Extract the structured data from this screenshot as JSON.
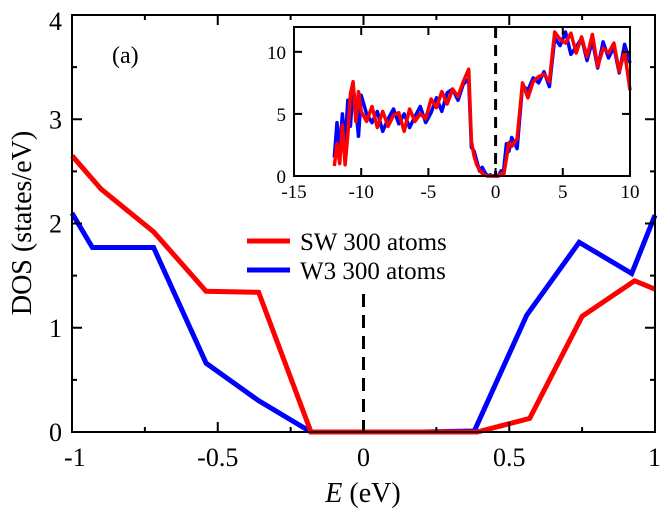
{
  "chart_data": [
    {
      "type": "line",
      "panel_label": "(a)",
      "xlabel_italic": "E",
      "xlabel_rest": " (eV)",
      "ylabel": "DOS (states/eV)",
      "xlim": [
        -1,
        1
      ],
      "ylim": [
        0,
        4
      ],
      "xticks": [
        -1,
        -0.5,
        0,
        0.5,
        1
      ],
      "xtick_labels": [
        "-1",
        "-0.5",
        "0",
        "0.5",
        "1"
      ],
      "yticks": [
        0,
        1,
        2,
        3,
        4
      ],
      "ytick_labels": [
        "0",
        "1",
        "2",
        "3",
        "4"
      ],
      "fermi_level_marker": 0,
      "legend_position": "center-right",
      "series": [
        {
          "name": "SW 300 atoms",
          "color": "#ff0000",
          "x": [
            -1.0,
            -0.9,
            -0.72,
            -0.54,
            -0.36,
            -0.18,
            0.0,
            0.2,
            0.39,
            0.57,
            0.75,
            0.93,
            1.0
          ],
          "y": [
            2.65,
            2.33,
            1.92,
            1.35,
            1.34,
            0.0,
            0.0,
            0.0,
            0.0,
            0.13,
            1.11,
            1.45,
            1.37
          ]
        },
        {
          "name": "W3 300 atoms",
          "color": "#0000ff",
          "x": [
            -1.0,
            -0.93,
            -0.72,
            -0.54,
            -0.36,
            -0.18,
            0.0,
            0.2,
            0.38,
            0.56,
            0.74,
            0.92,
            1.0
          ],
          "y": [
            2.1,
            1.77,
            1.77,
            0.66,
            0.3,
            0.0,
            0.0,
            0.0,
            0.01,
            1.12,
            1.82,
            1.52,
            2.08
          ]
        }
      ]
    },
    {
      "type": "line",
      "role": "inset",
      "xlim": [
        -15,
        10
      ],
      "ylim": [
        0,
        12
      ],
      "xticks": [
        -15,
        -10,
        -5,
        0,
        5,
        10
      ],
      "xtick_labels": [
        "-15",
        "-10",
        "-5",
        "0",
        "5",
        "10"
      ],
      "yticks": [
        0,
        5,
        10
      ],
      "ytick_labels": [
        "0",
        "5",
        "10"
      ],
      "fermi_level_marker": 0,
      "series": [
        {
          "color": "#0000ff",
          "x": [
            -12.0,
            -11.8,
            -11.6,
            -11.4,
            -11.2,
            -11.0,
            -10.8,
            -10.6,
            -10.4,
            -10.2,
            -10.0,
            -9.6,
            -9.2,
            -8.8,
            -8.4,
            -8.0,
            -7.6,
            -7.2,
            -6.8,
            -6.4,
            -6.0,
            -5.6,
            -5.2,
            -4.8,
            -4.4,
            -4.0,
            -3.6,
            -3.2,
            -2.8,
            -2.4,
            -2.0,
            -1.8,
            -1.6,
            -1.4,
            -1.2,
            -1.0,
            -0.8,
            -0.6,
            -0.4,
            -0.2,
            0.0,
            0.2,
            0.4,
            0.6,
            0.8,
            1.0,
            1.2,
            1.6,
            2.0,
            2.4,
            2.8,
            3.2,
            3.6,
            4.0,
            4.4,
            4.8,
            5.2,
            5.6,
            6.0,
            6.4,
            6.8,
            7.2,
            7.6,
            8.0,
            8.4,
            8.8,
            9.2,
            9.6,
            10.0
          ],
          "y": [
            1.5,
            4.3,
            2.0,
            5.0,
            2.5,
            6.1,
            4.0,
            7.2,
            5.5,
            3.2,
            6.5,
            5.0,
            4.3,
            5.2,
            3.6,
            4.6,
            5.4,
            4.2,
            5.0,
            3.9,
            4.8,
            5.6,
            4.3,
            5.1,
            6.3,
            5.2,
            6.7,
            7.0,
            6.1,
            7.4,
            7.8,
            2.3,
            2.0,
            1.2,
            0.4,
            0.7,
            0.3,
            0.0,
            0.1,
            0.0,
            0.0,
            0.0,
            0.4,
            0.5,
            2.6,
            2.0,
            3.1,
            2.2,
            7.3,
            6.9,
            7.9,
            7.5,
            8.4,
            7.2,
            11.1,
            10.5,
            11.6,
            9.8,
            10.4,
            11.1,
            9.3,
            10.9,
            8.7,
            10.8,
            9.5,
            10.4,
            8.3,
            10.6,
            9.1
          ]
        },
        {
          "color": "#ff0000",
          "x": [
            -12.0,
            -11.8,
            -11.6,
            -11.4,
            -11.2,
            -11.0,
            -10.8,
            -10.6,
            -10.4,
            -10.2,
            -10.0,
            -9.6,
            -9.2,
            -8.8,
            -8.4,
            -8.0,
            -7.6,
            -7.2,
            -6.8,
            -6.4,
            -6.0,
            -5.6,
            -5.2,
            -4.8,
            -4.4,
            -4.0,
            -3.6,
            -3.2,
            -2.8,
            -2.4,
            -2.0,
            -1.8,
            -1.6,
            -1.4,
            -1.2,
            -1.0,
            -0.8,
            -0.6,
            -0.4,
            -0.2,
            0.0,
            0.2,
            0.4,
            0.6,
            0.8,
            1.0,
            1.2,
            1.6,
            2.0,
            2.4,
            2.8,
            3.2,
            3.6,
            4.0,
            4.4,
            4.8,
            5.2,
            5.6,
            6.0,
            6.4,
            6.8,
            7.2,
            7.6,
            8.0,
            8.4,
            8.8,
            9.2,
            9.6,
            10.0
          ],
          "y": [
            0.8,
            2.6,
            1.0,
            4.1,
            0.9,
            3.3,
            6.6,
            7.6,
            4.4,
            6.8,
            5.2,
            4.4,
            5.6,
            3.9,
            5.2,
            4.0,
            4.9,
            5.1,
            3.6,
            5.4,
            4.4,
            5.0,
            4.6,
            6.2,
            5.5,
            6.8,
            5.8,
            7.0,
            6.4,
            7.6,
            8.6,
            2.8,
            1.6,
            0.9,
            0.5,
            0.2,
            0.1,
            0.0,
            0.0,
            0.0,
            0.0,
            0.0,
            0.2,
            0.1,
            1.4,
            2.7,
            2.4,
            3.0,
            7.5,
            6.3,
            7.6,
            8.0,
            8.2,
            7.6,
            11.6,
            11.0,
            10.7,
            11.5,
            9.9,
            11.2,
            9.6,
            11.4,
            8.8,
            10.3,
            9.9,
            10.7,
            8.4,
            10.0,
            6.9
          ]
        }
      ]
    }
  ]
}
